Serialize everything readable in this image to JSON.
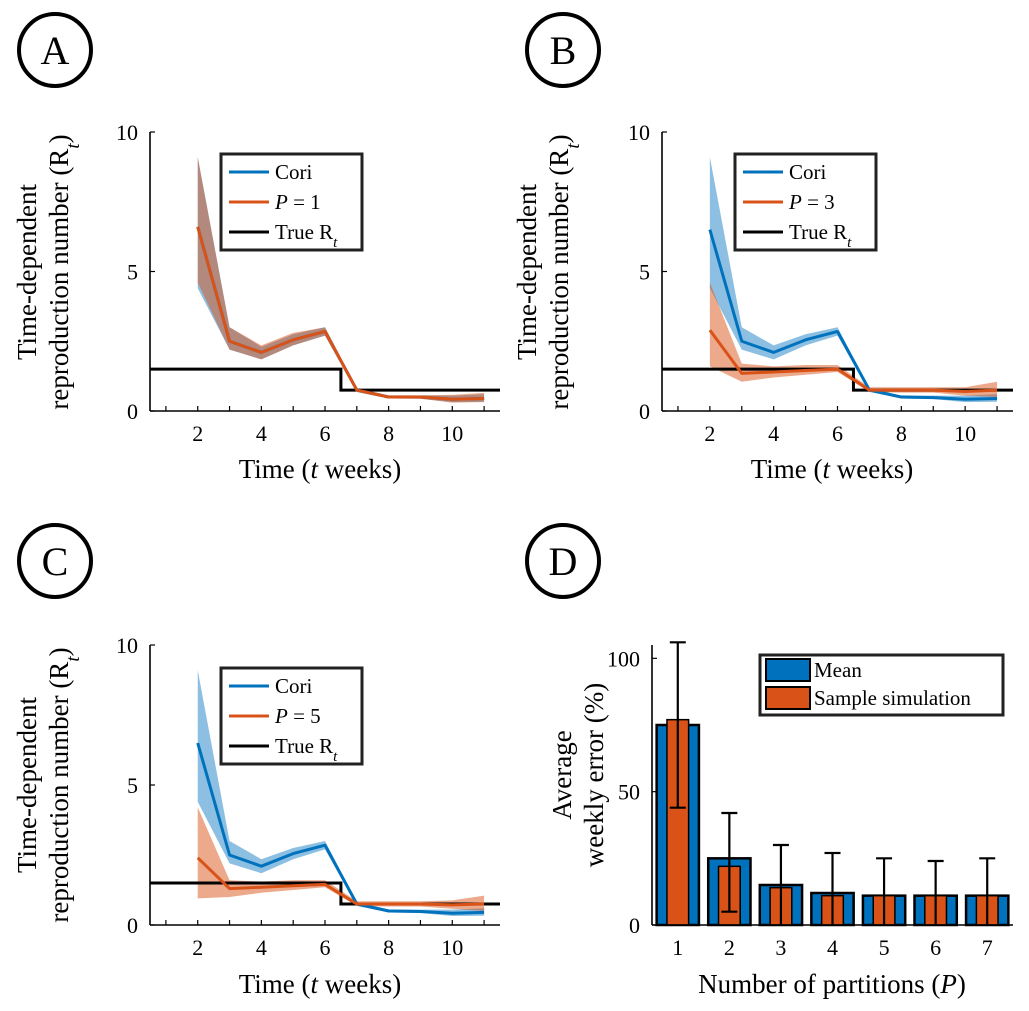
{
  "colors": {
    "cori": "#0072BD",
    "method": "#D95319",
    "true": "#000000",
    "overlap": "#6b4a52"
  },
  "chart_data": [
    {
      "panel": "A",
      "type": "line",
      "xlabel_parts": [
        "Time (",
        "t",
        " weeks)"
      ],
      "ylabel_lines": [
        "Time-dependent",
        "reproduction number (R",
        "t",
        ")"
      ],
      "xlim": [
        0.5,
        11.5
      ],
      "ylim": [
        0,
        10
      ],
      "xticks": [
        "2",
        "4",
        "6",
        "8",
        "10"
      ],
      "xtick_values": [
        2,
        4,
        6,
        8,
        10
      ],
      "yticks": [
        "0",
        "5",
        "10"
      ],
      "ytick_values": [
        0,
        5,
        10
      ],
      "legend_labels": {
        "cori": "Cori",
        "method_prefix": "P",
        "method_eq": " = ",
        "method_value": "1",
        "true_prefix": "True R",
        "true_sub": "t"
      },
      "legend_location": "top-right",
      "x": [
        2,
        3,
        4,
        5,
        6,
        7,
        8,
        9,
        10,
        11
      ],
      "cori": {
        "mean": [
          6.6,
          2.5,
          2.1,
          2.55,
          2.85,
          0.75,
          0.5,
          0.5,
          0.42,
          0.45
        ],
        "lower": [
          4.4,
          2.2,
          1.85,
          2.35,
          2.7,
          0.68,
          0.45,
          0.44,
          0.32,
          0.33
        ],
        "upper": [
          9.1,
          3.0,
          2.3,
          2.75,
          3.0,
          0.82,
          0.56,
          0.56,
          0.55,
          0.6
        ]
      },
      "method": {
        "mean": [
          6.6,
          2.5,
          2.1,
          2.55,
          2.85,
          0.75,
          0.5,
          0.5,
          0.42,
          0.45
        ],
        "lower": [
          4.6,
          2.2,
          1.85,
          2.35,
          2.7,
          0.68,
          0.45,
          0.44,
          0.3,
          0.32
        ],
        "upper": [
          9.1,
          3.0,
          2.35,
          2.8,
          3.0,
          0.82,
          0.56,
          0.56,
          0.58,
          0.65
        ]
      },
      "true_rt": {
        "x": [
          0.5,
          6.5,
          6.5,
          11.5
        ],
        "y": [
          1.5,
          1.5,
          0.75,
          0.75
        ]
      }
    },
    {
      "panel": "B",
      "type": "line",
      "xlabel_parts": [
        "Time (",
        "t",
        " weeks)"
      ],
      "ylabel_lines": [
        "Time-dependent",
        "reproduction number (R",
        "t",
        ")"
      ],
      "xlim": [
        0.5,
        11.5
      ],
      "ylim": [
        0,
        10
      ],
      "xticks": [
        "2",
        "4",
        "6",
        "8",
        "10"
      ],
      "xtick_values": [
        2,
        4,
        6,
        8,
        10
      ],
      "yticks": [
        "0",
        "5",
        "10"
      ],
      "ytick_values": [
        0,
        5,
        10
      ],
      "legend_labels": {
        "cori": "Cori",
        "method_prefix": "P",
        "method_eq": " = ",
        "method_value": "3",
        "true_prefix": "True R",
        "true_sub": "t"
      },
      "legend_location": "top-right",
      "x": [
        2,
        3,
        4,
        5,
        6,
        7,
        8,
        9,
        10,
        11
      ],
      "cori": {
        "mean": [
          6.5,
          2.5,
          2.1,
          2.55,
          2.85,
          0.75,
          0.5,
          0.48,
          0.42,
          0.45
        ],
        "lower": [
          4.4,
          2.2,
          1.85,
          2.35,
          2.7,
          0.68,
          0.45,
          0.43,
          0.32,
          0.33
        ],
        "upper": [
          9.1,
          3.0,
          2.35,
          2.75,
          3.0,
          0.82,
          0.56,
          0.55,
          0.55,
          0.6
        ]
      },
      "method": {
        "mean": [
          2.9,
          1.35,
          1.4,
          1.45,
          1.5,
          0.75,
          0.75,
          0.75,
          0.7,
          0.75
        ],
        "lower": [
          1.6,
          1.05,
          1.2,
          1.3,
          1.4,
          0.68,
          0.66,
          0.66,
          0.55,
          0.5
        ],
        "upper": [
          4.6,
          1.7,
          1.6,
          1.65,
          1.65,
          0.85,
          0.85,
          0.85,
          0.85,
          1.05
        ]
      },
      "true_rt": {
        "x": [
          0.5,
          6.5,
          6.5,
          11.5
        ],
        "y": [
          1.5,
          1.5,
          0.75,
          0.75
        ]
      }
    },
    {
      "panel": "C",
      "type": "line",
      "xlabel_parts": [
        "Time (",
        "t",
        " weeks)"
      ],
      "ylabel_lines": [
        "Time-dependent",
        "reproduction number (R",
        "t",
        ")"
      ],
      "xlim": [
        0.5,
        11.5
      ],
      "ylim": [
        0,
        10
      ],
      "xticks": [
        "2",
        "4",
        "6",
        "8",
        "10"
      ],
      "xtick_values": [
        2,
        4,
        6,
        8,
        10
      ],
      "yticks": [
        "0",
        "5",
        "10"
      ],
      "ytick_values": [
        0,
        5,
        10
      ],
      "legend_labels": {
        "cori": "Cori",
        "method_prefix": "P",
        "method_eq": " = ",
        "method_value": "5",
        "true_prefix": "True R",
        "true_sub": "t"
      },
      "legend_location": "top-right",
      "x": [
        2,
        3,
        4,
        5,
        6,
        7,
        8,
        9,
        10,
        11
      ],
      "cori": {
        "mean": [
          6.5,
          2.5,
          2.1,
          2.55,
          2.85,
          0.75,
          0.5,
          0.48,
          0.42,
          0.45
        ],
        "lower": [
          4.4,
          2.2,
          1.85,
          2.35,
          2.7,
          0.68,
          0.45,
          0.43,
          0.32,
          0.33
        ],
        "upper": [
          9.1,
          3.0,
          2.35,
          2.75,
          3.0,
          0.82,
          0.56,
          0.55,
          0.55,
          0.6
        ]
      },
      "method": {
        "mean": [
          2.4,
          1.3,
          1.35,
          1.4,
          1.45,
          0.75,
          0.75,
          0.75,
          0.72,
          0.75
        ],
        "lower": [
          0.95,
          1.0,
          1.15,
          1.25,
          1.35,
          0.68,
          0.66,
          0.66,
          0.58,
          0.5
        ],
        "upper": [
          4.2,
          1.6,
          1.55,
          1.6,
          1.6,
          0.85,
          0.85,
          0.85,
          0.88,
          1.05
        ]
      },
      "true_rt": {
        "x": [
          0.5,
          6.5,
          6.5,
          11.5
        ],
        "y": [
          1.5,
          1.5,
          0.75,
          0.75
        ]
      }
    },
    {
      "panel": "D",
      "type": "bar",
      "xlabel_parts": [
        "Number of partitions (",
        "P",
        ")"
      ],
      "ylabel_lines": [
        "Average",
        "weekly error (%)"
      ],
      "xlim": [
        0.5,
        7.5
      ],
      "ylim": [
        0,
        105
      ],
      "categories": [
        "1",
        "2",
        "3",
        "4",
        "5",
        "6",
        "7"
      ],
      "yticks": [
        "0",
        "50",
        "100"
      ],
      "ytick_values": [
        0,
        50,
        100
      ],
      "legend_labels": {
        "mean": "Mean",
        "sample": "Sample simulation"
      },
      "legend_location": "top-right",
      "series": [
        {
          "name": "Mean",
          "values": [
            75,
            25,
            15,
            12,
            11,
            11,
            11
          ],
          "error_lower": [
            44,
            5,
            0,
            0,
            0,
            0,
            0
          ],
          "error_upper": [
            106,
            42,
            30,
            27,
            25,
            24,
            25
          ]
        },
        {
          "name": "Sample simulation",
          "values": [
            77,
            22,
            14,
            11,
            11,
            11,
            11
          ]
        }
      ]
    }
  ]
}
